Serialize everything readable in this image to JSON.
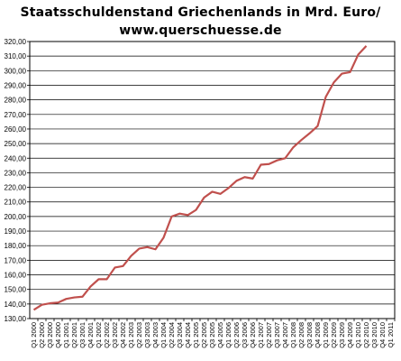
{
  "chart_data": {
    "type": "line",
    "title": "Staatsschuldenstand Griechenlands in Mrd. Euro/",
    "subtitle": "www.querschuesse.de",
    "xlabel": "",
    "ylabel": "",
    "ylim": [
      130,
      320
    ],
    "ytick_step": 10,
    "grid": true,
    "legend": "none",
    "line_color": "#c0504d",
    "categories": [
      "Q1 2000",
      "Q2 2000",
      "Q3 2000",
      "Q4 2000",
      "Q1 2001",
      "Q2 2001",
      "Q3 2001",
      "Q4 2001",
      "Q1 2002",
      "Q2 2002",
      "Q3 2002",
      "Q4 2002",
      "Q1 2003",
      "Q2 2003",
      "Q3 2003",
      "Q4 2003",
      "Q1 2004",
      "Q2 2004",
      "Q3 2004",
      "Q4 2004",
      "Q1 2005",
      "Q2 2005",
      "Q3 2005",
      "Q4 2005",
      "Q1 2006",
      "Q2 2006",
      "Q3 2006",
      "Q4 2006",
      "Q1 2007",
      "Q2 2007",
      "Q3 2007",
      "Q4 2007",
      "Q1 2008",
      "Q2 2008",
      "Q3 2008",
      "Q4 2008",
      "Q1 2009",
      "Q2 2009",
      "Q3 2009",
      "Q4 2009",
      "Q1 2010",
      "Q2 2010",
      "Q3 2010",
      "Q4 2010",
      "Q1 2011"
    ],
    "series": [
      {
        "values": [
          136,
          139.5,
          140.5,
          141,
          143.5,
          144.5,
          145,
          152,
          157,
          157,
          165,
          166,
          173,
          178,
          179,
          177.5,
          185.5,
          200,
          202,
          201,
          204.5,
          213,
          217,
          215.5,
          219.5,
          224.5,
          227,
          226,
          235.5,
          236,
          238.5,
          240,
          247.5,
          252.5,
          257,
          262,
          282,
          292,
          298,
          299,
          311,
          317,
          null,
          null,
          null
        ]
      }
    ]
  }
}
